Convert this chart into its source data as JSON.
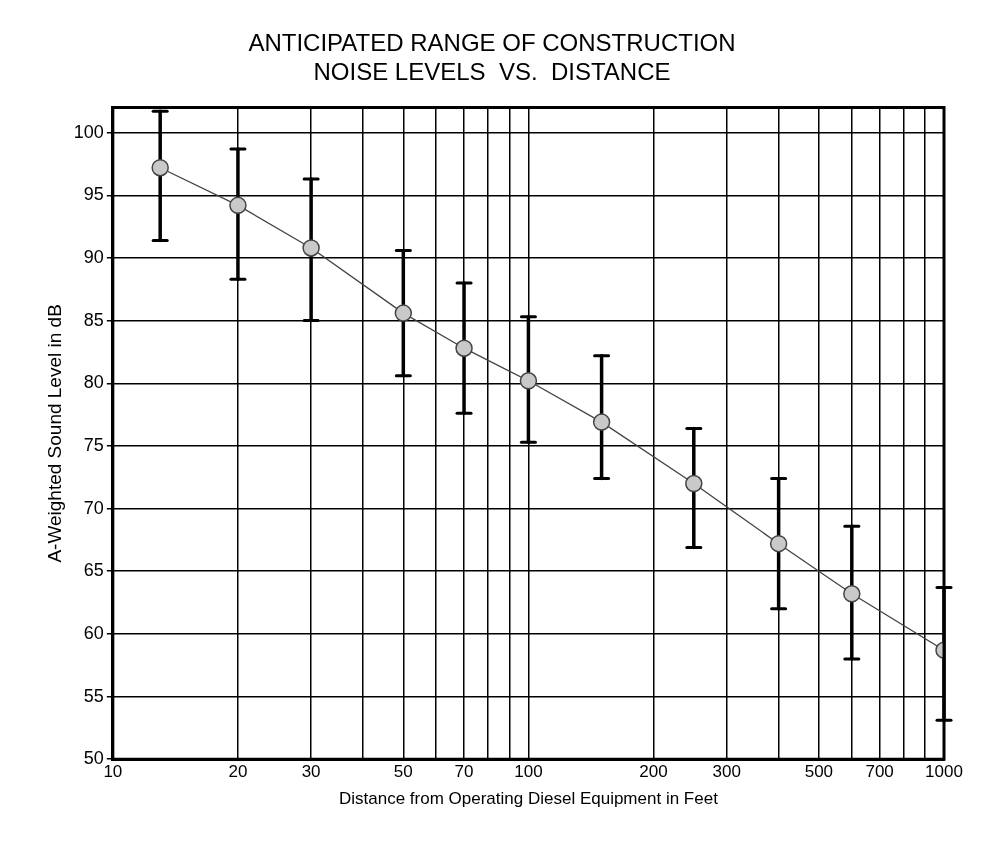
{
  "chart_data": {
    "type": "line",
    "title": "ANTICIPATED RANGE OF CONSTRUCTION",
    "subtitle": "NOISE LEVELS  VS.  DISTANCE",
    "xlabel": "Distance from Operating Diesel Equipment in Feet",
    "ylabel": "A-Weighted Sound Level in dB",
    "log": "x",
    "grid": true,
    "legend": false,
    "marker": "circle",
    "line_style": "solid",
    "xlim": [
      10,
      1000
    ],
    "xticks": [
      10,
      20,
      30,
      {
        "value": 40,
        "label": null
      },
      50,
      {
        "value": 60,
        "label": null
      },
      70,
      {
        "value": 80,
        "label": null
      },
      {
        "value": 90,
        "label": null
      },
      100,
      200,
      300,
      {
        "value": 400,
        "label": null
      },
      500,
      {
        "value": 600,
        "label": null
      },
      700,
      {
        "value": 800,
        "label": null
      },
      {
        "value": 900,
        "label": null
      },
      1000
    ],
    "ylim": [
      50,
      102
    ],
    "yticks": [
      50,
      55,
      60,
      65,
      70,
      75,
      80,
      85,
      90,
      95,
      100
    ],
    "series": [
      {
        "color": "#444444",
        "x": [
          13,
          20,
          30,
          50,
          70,
          100,
          150,
          250,
          400,
          600,
          1000
        ],
        "values": [
          97.2,
          94.2,
          90.8,
          85.6,
          82.8,
          80.2,
          76.9,
          72.0,
          67.2,
          63.2,
          58.7
        ],
        "errors": [
          [
            91.4,
            101.7
          ],
          [
            88.3,
            98.7
          ],
          [
            85.0,
            96.3
          ],
          [
            80.6,
            90.6
          ],
          [
            77.6,
            88.0
          ],
          [
            75.3,
            85.3
          ],
          [
            72.4,
            82.2
          ],
          [
            66.9,
            76.4
          ],
          [
            62.0,
            72.4
          ],
          [
            58.0,
            68.6
          ],
          [
            53.1,
            63.7
          ]
        ]
      }
    ]
  }
}
